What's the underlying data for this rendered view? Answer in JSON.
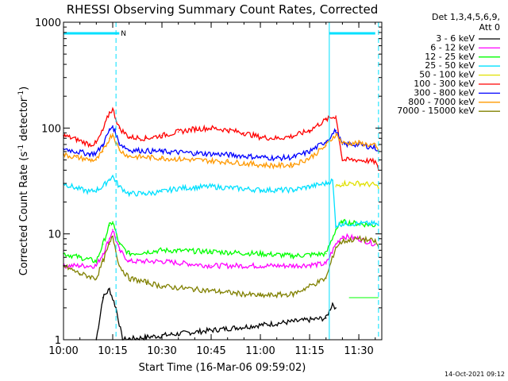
{
  "colors": {
    "background": "#ffffff",
    "axis": "#000000",
    "markers": "#00e0ff"
  },
  "chart_data": {
    "type": "line",
    "title": "RHESSI Observing Summary Count Rates, Corrected",
    "xlabel": "Start Time (16-Mar-06 09:59:02)",
    "ylabel": "Corrected Count Rate (s",
    "ylabel_sup1": "-1",
    "ylabel_mid": " detector",
    "ylabel_sup2": "-1",
    "ylabel_end": ")",
    "y_scale": "log",
    "xlim": [
      "10:00",
      "11:37"
    ],
    "ylim": [
      1,
      1000
    ],
    "x_ticks": [
      "10:00",
      "10:15",
      "10:30",
      "10:45",
      "11:00",
      "11:15",
      "11:30"
    ],
    "y_ticks": [
      "1",
      "10",
      "100",
      "1000"
    ],
    "legend_header": [
      "Det 1,3,4,5,6,9,",
      "Att 0"
    ],
    "legend_placement": "right",
    "footer_date": "14-Oct-2021 09:12",
    "marker_text": "N",
    "markers": [
      {
        "label": "N",
        "bar_start": "10:00",
        "bar_end": "10:17",
        "dashed_at": "10:16",
        "solid_at": null
      },
      {
        "label": "",
        "bar_start": "11:21",
        "bar_end": "11:35",
        "dashed_at": "11:36",
        "solid_at": "11:21"
      }
    ],
    "series": [
      {
        "name": "3 - 6 keV",
        "color": "#000000",
        "x": [
          "10:10",
          "10:12",
          "10:14",
          "10:16",
          "10:18",
          "11:20",
          "11:22",
          "11:23"
        ],
        "values": [
          1.0,
          2.5,
          3.0,
          2.0,
          1.0,
          1.6,
          2.2,
          2.0
        ]
      },
      {
        "name": "6 - 12 keV",
        "color": "#ff00ff",
        "x": [
          "10:00",
          "10:05",
          "10:10",
          "10:12",
          "10:14",
          "10:15",
          "10:17",
          "10:20",
          "10:30",
          "10:45",
          "11:00",
          "11:10",
          "11:20",
          "11:23",
          "11:25",
          "11:30",
          "11:35"
        ],
        "values": [
          5.0,
          5.0,
          5.0,
          6.5,
          9.0,
          11.0,
          7.0,
          5.5,
          5.5,
          5.0,
          5.0,
          5.0,
          5.2,
          8.0,
          9.5,
          9.0,
          8.0
        ]
      },
      {
        "name": "12 - 25 keV",
        "color": "#00ff00",
        "x": [
          "10:00",
          "10:05",
          "10:10",
          "10:12",
          "10:14",
          "10:15",
          "10:17",
          "10:20",
          "10:30",
          "10:45",
          "11:00",
          "11:10",
          "11:20",
          "11:23",
          "11:25",
          "11:30",
          "11:35"
        ],
        "values": [
          6.5,
          6.0,
          5.5,
          8.0,
          12.0,
          13.0,
          8.0,
          6.5,
          7.0,
          6.8,
          6.5,
          6.2,
          6.5,
          11.0,
          13.0,
          12.5,
          12.0
        ]
      },
      {
        "name": "25 - 50 keV",
        "color": "#00e0ff",
        "x": [
          "10:00",
          "10:04",
          "10:08",
          "10:10",
          "10:12",
          "10:14",
          "10:15",
          "10:17",
          "10:20",
          "10:25",
          "10:30",
          "10:35",
          "10:45",
          "11:00",
          "11:10",
          "11:15",
          "11:20",
          "11:22",
          "11:23",
          "11:25",
          "11:30",
          "11:35",
          "11:36"
        ],
        "values": [
          30,
          27,
          25,
          26,
          28,
          33,
          35,
          28,
          24,
          24,
          25,
          27,
          28,
          26,
          26,
          28,
          30,
          32,
          12.0,
          12.5,
          12.5,
          12.5,
          12.0
        ]
      },
      {
        "name": "50 - 100 keV",
        "color": "#e0e000",
        "x": [
          "11:23",
          "11:25",
          "11:30",
          "11:35",
          "11:36"
        ],
        "values": [
          28,
          30,
          30,
          29,
          27
        ]
      },
      {
        "name": "100 - 300 keV",
        "color": "#ff0000",
        "x": [
          "10:00",
          "10:04",
          "10:08",
          "10:10",
          "10:12",
          "10:14",
          "10:15",
          "10:17",
          "10:20",
          "10:25",
          "10:30",
          "10:35",
          "10:40",
          "10:45",
          "10:50",
          "10:55",
          "11:00",
          "11:05",
          "11:10",
          "11:15",
          "11:20",
          "11:23",
          "11:25",
          "11:30",
          "11:35",
          "11:36"
        ],
        "values": [
          85,
          78,
          70,
          72,
          95,
          140,
          150,
          100,
          82,
          80,
          85,
          92,
          98,
          100,
          96,
          90,
          82,
          80,
          84,
          95,
          120,
          130,
          50,
          50,
          48,
          40
        ]
      },
      {
        "name": "300 - 800 keV",
        "color": "#0000ff",
        "x": [
          "10:00",
          "10:04",
          "10:08",
          "10:10",
          "10:12",
          "10:14",
          "10:15",
          "10:17",
          "10:20",
          "10:30",
          "10:40",
          "10:50",
          "11:00",
          "11:05",
          "11:10",
          "11:15",
          "11:20",
          "11:23",
          "11:25",
          "11:30",
          "11:35",
          "11:36"
        ],
        "values": [
          64,
          60,
          57,
          58,
          70,
          95,
          105,
          72,
          62,
          60,
          58,
          56,
          53,
          52,
          53,
          60,
          75,
          95,
          70,
          70,
          65,
          62
        ]
      },
      {
        "name": "800 - 7000 keV",
        "color": "#ff9900",
        "x": [
          "10:00",
          "10:04",
          "10:08",
          "10:10",
          "10:12",
          "10:14",
          "10:15",
          "10:17",
          "10:20",
          "10:30",
          "10:40",
          "10:50",
          "11:00",
          "11:05",
          "11:10",
          "11:15",
          "11:20",
          "11:23",
          "11:25",
          "11:30",
          "11:35",
          "11:36"
        ],
        "values": [
          56,
          53,
          50,
          50,
          60,
          80,
          88,
          62,
          54,
          52,
          50,
          48,
          45,
          44,
          45,
          52,
          68,
          88,
          72,
          72,
          68,
          60
        ]
      },
      {
        "name": "7000 - 15000 keV",
        "color": "#808000",
        "x": [
          "10:00",
          "10:05",
          "10:10",
          "10:12",
          "10:14",
          "10:15",
          "10:17",
          "10:20",
          "10:25",
          "10:30",
          "10:40",
          "10:50",
          "11:00",
          "11:10",
          "11:20",
          "11:23",
          "11:25",
          "11:30",
          "11:35",
          "11:36"
        ],
        "values": [
          5.0,
          4.2,
          3.8,
          5.5,
          8.0,
          9.5,
          5.0,
          3.8,
          3.5,
          3.2,
          3.0,
          2.8,
          2.6,
          2.7,
          3.8,
          7.5,
          8.5,
          9.0,
          8.5,
          7.5
        ]
      }
    ],
    "horizontal_lines": [
      {
        "color": "#00ff00",
        "y": 2.5,
        "x_start": "11:27",
        "x_end": "11:36"
      }
    ]
  }
}
